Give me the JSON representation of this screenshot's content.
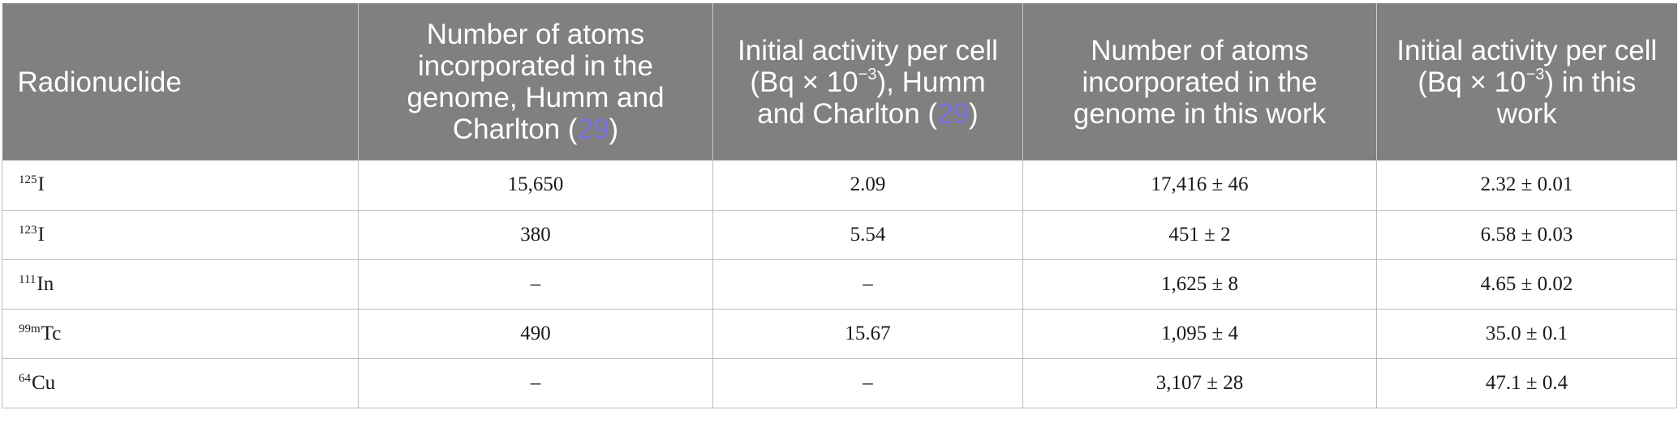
{
  "table": {
    "headers": [
      {
        "text": "Radionuclide"
      },
      {
        "text": "Number of atoms incorporated in the genome, Humm and Charlton (",
        "ref": "29",
        "after": ")"
      },
      {
        "pre": "Initial activity per cell (Bq × 10",
        "sup": "−3",
        "mid": "), Humm and Charlton (",
        "ref": "29",
        "after": ")"
      },
      {
        "text": "Number of atoms incorporated in the genome in this work"
      },
      {
        "pre": "Initial activity per cell (Bq × 10",
        "sup": "−3",
        "post": ") in this work"
      }
    ],
    "rows": [
      {
        "mass": "125",
        "element": "I",
        "humm_atoms": "15,650",
        "humm_activity": "2.09",
        "atoms": "17,416 ± 46",
        "activity": "2.32 ± 0.01"
      },
      {
        "mass": "123",
        "element": "I",
        "humm_atoms": "380",
        "humm_activity": "5.54",
        "atoms": "451 ± 2",
        "activity": "6.58 ± 0.03"
      },
      {
        "mass": "111",
        "element": "In",
        "humm_atoms": "–",
        "humm_activity": "–",
        "atoms": "1,625 ± 8",
        "activity": "4.65 ± 0.02"
      },
      {
        "mass": "99m",
        "element": "Tc",
        "humm_atoms": "490",
        "humm_activity": "15.67",
        "atoms": "1,095 ± 4",
        "activity": "35.0 ± 0.1"
      },
      {
        "mass": "64",
        "element": "Cu",
        "humm_atoms": "–",
        "humm_activity": "–",
        "atoms": "3,107 ± 28",
        "activity": "47.1 ± 0.4"
      }
    ]
  },
  "colors": {
    "header_bg": "#808080",
    "header_text": "#ffffff",
    "reference_link": "#7b74e0",
    "grid": "#bdbdbd"
  }
}
